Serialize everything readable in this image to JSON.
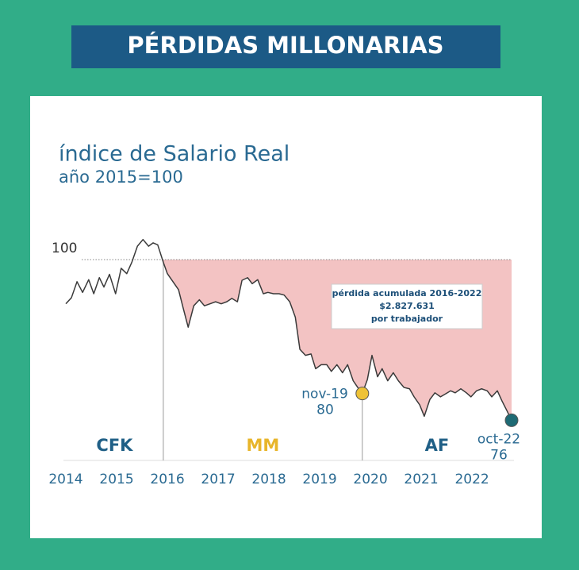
{
  "header": {
    "title": "PÉRDIDAS MILLONARIAS"
  },
  "chart_data": {
    "type": "line",
    "title": "índice de Salario Real",
    "subtitle": "año 2015=100",
    "x": [
      2014.0,
      2014.11,
      2014.22,
      2014.33,
      2014.45,
      2014.55,
      2014.66,
      2014.75,
      2014.86,
      2014.98,
      2015.09,
      2015.2,
      2015.3,
      2015.41,
      2015.52,
      2015.63,
      2015.72,
      2015.81,
      2015.92,
      2016.0,
      2016.11,
      2016.22,
      2016.31,
      2016.41,
      2016.52,
      2016.63,
      2016.73,
      2016.84,
      2016.95,
      2017.06,
      2017.17,
      2017.27,
      2017.38,
      2017.47,
      2017.58,
      2017.67,
      2017.78,
      2017.89,
      2017.98,
      2018.09,
      2018.2,
      2018.3,
      2018.41,
      2018.52,
      2018.61,
      2018.72,
      2018.83,
      2018.92,
      2019.03,
      2019.14,
      2019.23,
      2019.34,
      2019.45,
      2019.55,
      2019.66,
      2019.75,
      2019.84,
      2019.94,
      2020.03,
      2020.14,
      2020.23,
      2020.34,
      2020.45,
      2020.55,
      2020.66,
      2020.77,
      2020.86,
      2020.97,
      2021.06,
      2021.17,
      2021.27,
      2021.38,
      2021.47,
      2021.58,
      2021.67,
      2021.78,
      2021.89,
      2021.98,
      2022.09,
      2022.19,
      2022.3,
      2022.39,
      2022.5,
      2022.59,
      2022.69,
      2022.78
    ],
    "series": [
      {
        "color": "#3a3a3a",
        "values": [
          93.4,
          94.3,
          96.7,
          95.1,
          97.0,
          94.9,
          97.3,
          95.9,
          97.8,
          94.9,
          98.7,
          97.9,
          99.6,
          102.0,
          103.0,
          102.0,
          102.5,
          102.2,
          99.6,
          97.9,
          96.7,
          95.5,
          92.8,
          89.9,
          93.1,
          94.0,
          93.1,
          93.4,
          93.7,
          93.4,
          93.7,
          94.2,
          93.7,
          96.9,
          97.3,
          96.4,
          97.0,
          94.9,
          95.1,
          94.9,
          94.9,
          94.7,
          93.7,
          91.4,
          86.6,
          85.7,
          85.9,
          83.7,
          84.3,
          84.3,
          83.3,
          84.3,
          83.1,
          84.3,
          81.9,
          80.9,
          80.0,
          82.1,
          85.7,
          82.5,
          83.7,
          81.9,
          83.1,
          81.9,
          80.9,
          80.7,
          79.5,
          78.3,
          76.6,
          79.1,
          80.1,
          79.5,
          79.9,
          80.4,
          80.1,
          80.7,
          80.1,
          79.5,
          80.4,
          80.7,
          80.4,
          79.5,
          80.4,
          78.9,
          77.4,
          76
        ]
      }
    ],
    "xlim": [
      2014,
      2022.78
    ],
    "xticks": [
      2014,
      2015,
      2016,
      2017,
      2018,
      2019,
      2020,
      2021,
      2022
    ],
    "ylim": [
      70,
      103.2
    ],
    "yticks": [
      100
    ],
    "shade_color": "#f3c3c3",
    "period_boundaries": [
      2015.92,
      2019.84
    ],
    "periods": [
      {
        "label": "CFK",
        "color": "#1f5f86"
      },
      {
        "label": "MM",
        "color": "#e8b52a"
      },
      {
        "label": "AF",
        "color": "#1f5f86"
      }
    ],
    "annotations": [
      {
        "label": "nov-19",
        "x": 2019.84,
        "y": 80,
        "color": "#eec236"
      },
      {
        "label": "oct-22",
        "x": 2022.78,
        "y": 76,
        "color": "#1e6a74"
      }
    ],
    "note": [
      "pérdida acumulada 2016-2022",
      "$2.827.631",
      "por trabajador"
    ]
  }
}
